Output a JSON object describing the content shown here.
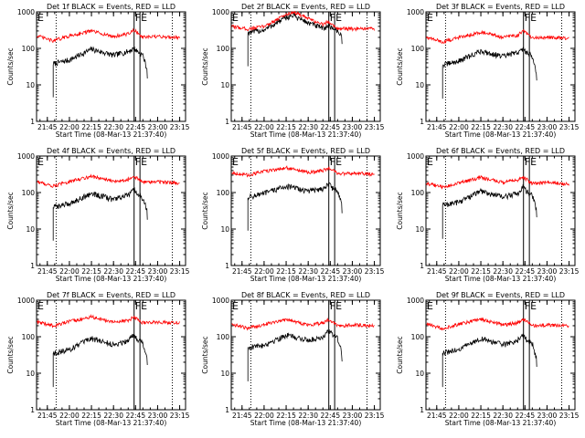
{
  "figure": {
    "ylabel": "Counts/sec",
    "xlabel": "Start Time (08-Mar-13 21:37:40)"
  },
  "chart_data": [
    {
      "panel": "1f",
      "type": "line",
      "title": "Det 1f BLACK = Events, RED = LLD",
      "xlabel": "Start Time (08-Mar-13 21:37:40)",
      "ylabel": "Counts/sec",
      "ylog": true,
      "ylim": [
        1,
        1000
      ],
      "xlim": [
        "21:37:40",
        "23:19"
      ],
      "xticks": [
        "21:45",
        "22:00",
        "22:15",
        "22:30",
        "22:45",
        "23:00",
        "23:15"
      ],
      "yticks": [
        "1",
        "10",
        "100",
        "1000"
      ],
      "markers": [
        {
          "label": "F",
          "time": "22:44"
        },
        {
          "label": "E",
          "time": "22:48"
        }
      ],
      "dotted_times": [
        "21:51",
        "23:10"
      ],
      "series": [
        {
          "name": "BLACK = Events",
          "color": "#000000",
          "x": [
            "21:49",
            "22:00",
            "22:15",
            "22:30",
            "22:40",
            "22:44",
            "22:46",
            "22:50",
            "22:53"
          ],
          "y": [
            38,
            48,
            95,
            65,
            82,
            100,
            85,
            65,
            25
          ]
        },
        {
          "name": "RED = LLD",
          "color": "#ff0000",
          "x": [
            "21:38",
            "21:49",
            "22:00",
            "22:15",
            "22:30",
            "22:40",
            "22:44",
            "22:50",
            "23:00",
            "23:15"
          ],
          "y": [
            220,
            160,
            220,
            300,
            210,
            250,
            320,
            200,
            210,
            200
          ]
        }
      ]
    },
    {
      "panel": "2f",
      "type": "line",
      "title": "Det 2f BLACK = Events, RED = LLD",
      "xlabel": "Start Time (08-Mar-13 21:37:40)",
      "ylabel": "Counts/sec",
      "ylog": true,
      "ylim": [
        1,
        1000
      ],
      "xlim": [
        "21:37:40",
        "23:19"
      ],
      "xticks": [
        "21:45",
        "22:00",
        "22:15",
        "22:30",
        "22:45",
        "23:00",
        "23:15"
      ],
      "yticks": [
        "1",
        "10",
        "100",
        "1000"
      ],
      "markers": [
        {
          "label": "F",
          "time": "22:44"
        },
        {
          "label": "E",
          "time": "22:48"
        }
      ],
      "dotted_times": [
        "21:51",
        "23:10"
      ],
      "series": [
        {
          "name": "BLACK = Events",
          "color": "#000000",
          "x": [
            "21:49",
            "22:00",
            "22:15",
            "22:20",
            "22:30",
            "22:40",
            "22:44",
            "22:50",
            "22:53"
          ],
          "y": [
            270,
            320,
            700,
            800,
            500,
            350,
            420,
            300,
            220
          ]
        },
        {
          "name": "RED = LLD",
          "color": "#ff0000",
          "x": [
            "21:38",
            "21:49",
            "22:00",
            "22:15",
            "22:20",
            "22:30",
            "22:40",
            "22:44",
            "22:50",
            "23:00",
            "23:15"
          ],
          "y": [
            400,
            340,
            400,
            850,
            1000,
            650,
            450,
            550,
            350,
            340,
            340
          ]
        }
      ]
    },
    {
      "panel": "3f",
      "type": "line",
      "title": "Det 3f BLACK = Events, RED = LLD",
      "xlabel": "Start Time (08-Mar-13 21:37:40)",
      "ylabel": "Counts/sec",
      "ylog": true,
      "ylim": [
        1,
        1000
      ],
      "xlim": [
        "21:37:40",
        "23:19"
      ],
      "xticks": [
        "21:45",
        "22:00",
        "22:15",
        "22:30",
        "22:45",
        "23:00",
        "23:15"
      ],
      "yticks": [
        "1",
        "10",
        "100",
        "1000"
      ],
      "markers": [
        {
          "label": "F",
          "time": "22:44"
        },
        {
          "label": "E",
          "time": "22:48"
        }
      ],
      "dotted_times": [
        "21:51",
        "23:10"
      ],
      "series": [
        {
          "name": "BLACK = Events",
          "color": "#000000",
          "x": [
            "21:49",
            "22:00",
            "22:15",
            "22:30",
            "22:40",
            "22:44",
            "22:46",
            "22:50",
            "22:53"
          ],
          "y": [
            35,
            45,
            85,
            60,
            78,
            95,
            80,
            60,
            22
          ]
        },
        {
          "name": "RED = LLD",
          "color": "#ff0000",
          "x": [
            "21:38",
            "21:49",
            "22:00",
            "22:15",
            "22:30",
            "22:40",
            "22:44",
            "22:50",
            "23:00",
            "23:15"
          ],
          "y": [
            200,
            150,
            200,
            280,
            200,
            230,
            300,
            190,
            200,
            190
          ]
        }
      ]
    },
    {
      "panel": "4f",
      "type": "line",
      "title": "Det 4f BLACK = Events, RED = LLD",
      "xlabel": "Start Time (08-Mar-13 21:37:40)",
      "ylabel": "Counts/sec",
      "ylog": true,
      "ylim": [
        1,
        1000
      ],
      "xlim": [
        "21:37:40",
        "23:19"
      ],
      "xticks": [
        "21:45",
        "22:00",
        "22:15",
        "22:30",
        "22:45",
        "23:00",
        "23:15"
      ],
      "yticks": [
        "1",
        "10",
        "100",
        "1000"
      ],
      "markers": [
        {
          "label": "F",
          "time": "22:44"
        },
        {
          "label": "E",
          "time": "22:48"
        }
      ],
      "dotted_times": [
        "21:51",
        "23:10"
      ],
      "series": [
        {
          "name": "BLACK = Events",
          "color": "#000000",
          "x": [
            "21:49",
            "22:00",
            "22:15",
            "22:30",
            "22:40",
            "22:44",
            "22:46",
            "22:50",
            "22:53"
          ],
          "y": [
            40,
            50,
            95,
            65,
            85,
            120,
            90,
            70,
            30
          ]
        },
        {
          "name": "RED = LLD",
          "color": "#ff0000",
          "x": [
            "21:38",
            "21:49",
            "22:00",
            "22:15",
            "22:30",
            "22:40",
            "22:44",
            "22:50",
            "23:00",
            "23:15"
          ],
          "y": [
            200,
            150,
            200,
            280,
            200,
            230,
            280,
            190,
            200,
            180
          ]
        }
      ]
    },
    {
      "panel": "5f",
      "type": "line",
      "title": "Det 5f BLACK = Events, RED = LLD",
      "xlabel": "Start Time (08-Mar-13 21:37:40)",
      "ylabel": "Counts/sec",
      "ylog": true,
      "ylim": [
        1,
        1000
      ],
      "xlim": [
        "21:37:40",
        "23:19"
      ],
      "xticks": [
        "21:45",
        "22:00",
        "22:15",
        "22:30",
        "22:45",
        "23:00",
        "23:15"
      ],
      "yticks": [
        "1",
        "10",
        "100",
        "1000"
      ],
      "markers": [
        {
          "label": "F",
          "time": "22:44"
        },
        {
          "label": "E",
          "time": "22:48"
        }
      ],
      "dotted_times": [
        "21:51",
        "23:10"
      ],
      "series": [
        {
          "name": "BLACK = Events",
          "color": "#000000",
          "x": [
            "21:49",
            "22:00",
            "22:15",
            "22:30",
            "22:40",
            "22:44",
            "22:46",
            "22:50",
            "22:53"
          ],
          "y": [
            75,
            95,
            150,
            110,
            130,
            170,
            140,
            110,
            45
          ]
        },
        {
          "name": "RED = LLD",
          "color": "#ff0000",
          "x": [
            "21:38",
            "21:49",
            "22:00",
            "22:15",
            "22:30",
            "22:40",
            "22:44",
            "22:50",
            "23:00",
            "23:15"
          ],
          "y": [
            350,
            300,
            380,
            480,
            350,
            400,
            480,
            330,
            340,
            320
          ]
        }
      ]
    },
    {
      "panel": "6f",
      "type": "line",
      "title": "Det 6f BLACK = Events, RED = LLD",
      "xlabel": "Start Time (08-Mar-13 21:37:40)",
      "ylabel": "Counts/sec",
      "ylog": true,
      "ylim": [
        1,
        1000
      ],
      "xlim": [
        "21:37:40",
        "23:19"
      ],
      "xticks": [
        "21:45",
        "22:00",
        "22:15",
        "22:30",
        "22:45",
        "23:00",
        "23:15"
      ],
      "yticks": [
        "1",
        "10",
        "100",
        "1000"
      ],
      "markers": [
        {
          "label": "F",
          "time": "22:44"
        },
        {
          "label": "E",
          "time": "22:48"
        }
      ],
      "dotted_times": [
        "21:51",
        "23:10"
      ],
      "series": [
        {
          "name": "BLACK = Events",
          "color": "#000000",
          "x": [
            "21:49",
            "22:00",
            "22:15",
            "22:30",
            "22:40",
            "22:44",
            "22:46",
            "22:50",
            "22:53"
          ],
          "y": [
            45,
            55,
            110,
            75,
            95,
            150,
            110,
            80,
            35
          ]
        },
        {
          "name": "RED = LLD",
          "color": "#ff0000",
          "x": [
            "21:38",
            "21:49",
            "22:00",
            "22:15",
            "22:30",
            "22:40",
            "22:44",
            "22:50",
            "23:00",
            "23:15"
          ],
          "y": [
            180,
            140,
            180,
            260,
            190,
            220,
            260,
            180,
            190,
            170
          ]
        }
      ]
    },
    {
      "panel": "7f",
      "type": "line",
      "title": "Det 7f BLACK = Events, RED = LLD",
      "xlabel": "Start Time (08-Mar-13 21:37:40)",
      "ylabel": "Counts/sec",
      "ylog": true,
      "ylim": [
        1,
        1000
      ],
      "xlim": [
        "21:37:40",
        "23:19"
      ],
      "xticks": [
        "21:45",
        "22:00",
        "22:15",
        "22:30",
        "22:45",
        "23:00",
        "23:15"
      ],
      "yticks": [
        "1",
        "10",
        "100",
        "1000"
      ],
      "markers": [
        {
          "label": "F",
          "time": "22:44"
        },
        {
          "label": "E",
          "time": "22:48"
        }
      ],
      "dotted_times": [
        "21:51",
        "23:10"
      ],
      "series": [
        {
          "name": "BLACK = Events",
          "color": "#000000",
          "x": [
            "21:49",
            "22:00",
            "22:15",
            "22:30",
            "22:40",
            "22:44",
            "22:46",
            "22:50",
            "22:53"
          ],
          "y": [
            35,
            45,
            90,
            60,
            80,
            120,
            90,
            65,
            28
          ]
        },
        {
          "name": "RED = LLD",
          "color": "#ff0000",
          "x": [
            "21:38",
            "21:49",
            "22:00",
            "22:15",
            "22:30",
            "22:40",
            "22:44",
            "22:50",
            "23:00",
            "23:15"
          ],
          "y": [
            250,
            200,
            260,
            350,
            250,
            280,
            350,
            240,
            250,
            240
          ]
        }
      ]
    },
    {
      "panel": "8f",
      "type": "line",
      "title": "Det 8f BLACK = Events, RED = LLD",
      "xlabel": "Start Time (08-Mar-13 21:37:40)",
      "ylabel": "Counts/sec",
      "ylog": true,
      "ylim": [
        1,
        1000
      ],
      "xlim": [
        "21:37:40",
        "23:19"
      ],
      "xticks": [
        "21:45",
        "22:00",
        "22:15",
        "22:30",
        "22:45",
        "23:00",
        "23:15"
      ],
      "yticks": [
        "1",
        "10",
        "100",
        "1000"
      ],
      "markers": [
        {
          "label": "F",
          "time": "22:44"
        },
        {
          "label": "E",
          "time": "22:48"
        }
      ],
      "dotted_times": [
        "21:51",
        "23:10"
      ],
      "series": [
        {
          "name": "BLACK = Events",
          "color": "#000000",
          "x": [
            "21:49",
            "22:00",
            "22:15",
            "22:30",
            "22:40",
            "22:44",
            "22:46",
            "22:50",
            "22:53"
          ],
          "y": [
            50,
            60,
            110,
            80,
            100,
            150,
            120,
            90,
            35
          ]
        },
        {
          "name": "RED = LLD",
          "color": "#ff0000",
          "x": [
            "21:38",
            "21:49",
            "22:00",
            "22:15",
            "22:30",
            "22:40",
            "22:44",
            "22:50",
            "23:00",
            "23:15"
          ],
          "y": [
            220,
            170,
            220,
            300,
            210,
            240,
            300,
            200,
            210,
            200
          ]
        }
      ]
    },
    {
      "panel": "9f",
      "type": "line",
      "title": "Det 9f BLACK = Events, RED = LLD",
      "xlabel": "Start Time (08-Mar-13 21:37:40)",
      "ylabel": "Counts/sec",
      "ylog": true,
      "ylim": [
        1,
        1000
      ],
      "xlim": [
        "21:37:40",
        "23:19"
      ],
      "xticks": [
        "21:45",
        "22:00",
        "22:15",
        "22:30",
        "22:45",
        "23:00",
        "23:15"
      ],
      "yticks": [
        "1",
        "10",
        "100",
        "1000"
      ],
      "markers": [
        {
          "label": "F",
          "time": "22:44"
        },
        {
          "label": "E",
          "time": "22:48"
        }
      ],
      "dotted_times": [
        "21:51",
        "23:10"
      ],
      "series": [
        {
          "name": "BLACK = Events",
          "color": "#000000",
          "x": [
            "21:49",
            "22:00",
            "22:15",
            "22:30",
            "22:40",
            "22:44",
            "22:46",
            "22:50",
            "22:53"
          ],
          "y": [
            35,
            45,
            90,
            60,
            80,
            110,
            85,
            65,
            25
          ]
        },
        {
          "name": "RED = LLD",
          "color": "#ff0000",
          "x": [
            "21:38",
            "21:49",
            "22:00",
            "22:15",
            "22:30",
            "22:40",
            "22:44",
            "22:50",
            "23:00",
            "23:15"
          ],
          "y": [
            220,
            170,
            220,
            300,
            210,
            240,
            300,
            200,
            210,
            200
          ]
        }
      ]
    }
  ]
}
